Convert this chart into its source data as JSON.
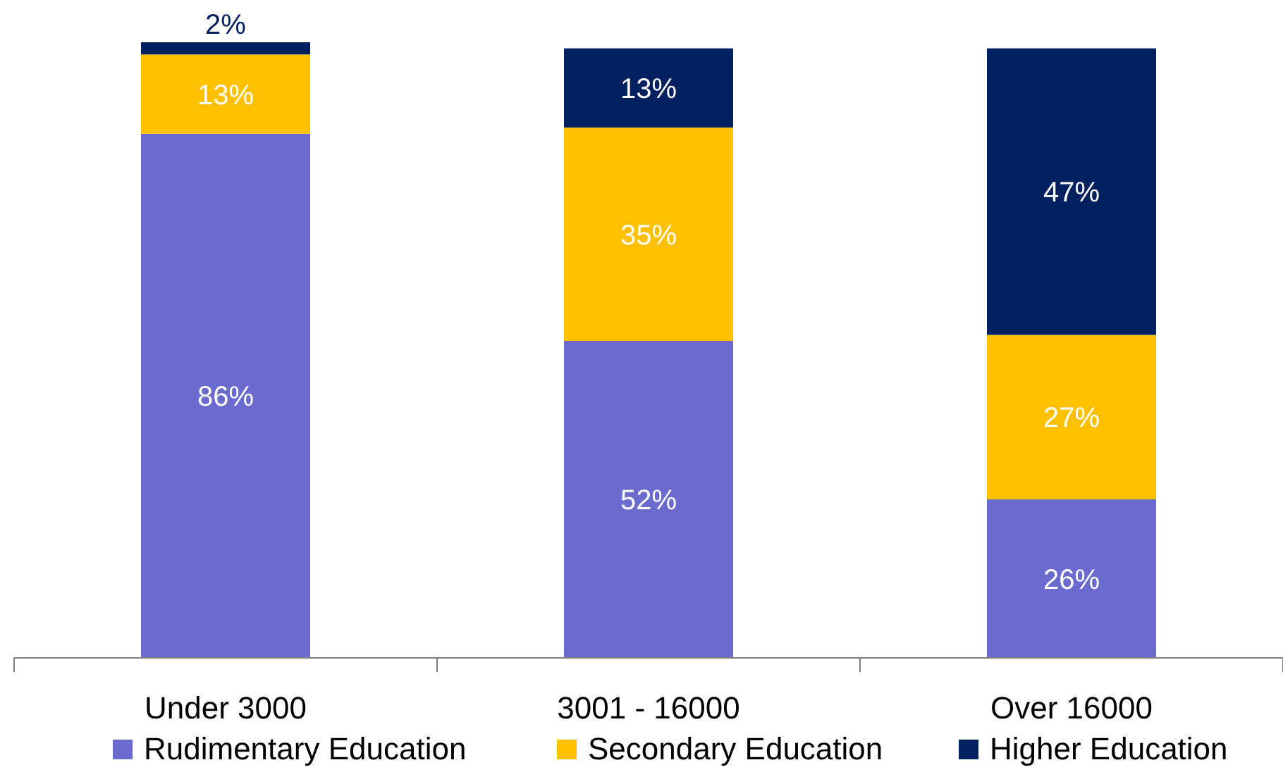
{
  "chart_data": {
    "type": "bar",
    "stacked": true,
    "categories": [
      "Under 3000",
      "3001 - 16000",
      "Over 16000"
    ],
    "series": [
      {
        "name": "Rudimentary Education",
        "color": "#6b6bcf",
        "values": [
          86,
          52,
          26
        ],
        "value_labels": [
          "86%",
          "52%",
          "26%"
        ]
      },
      {
        "name": "Secondary Education",
        "color": "#ffc000",
        "values": [
          13,
          35,
          27
        ],
        "value_labels": [
          "13%",
          "35%",
          "27%"
        ]
      },
      {
        "name": "Higher Education",
        "color": "#002060",
        "values": [
          2,
          13,
          47
        ],
        "value_labels": [
          "2%",
          "13%",
          "47%"
        ]
      }
    ],
    "legend": "bottom"
  }
}
